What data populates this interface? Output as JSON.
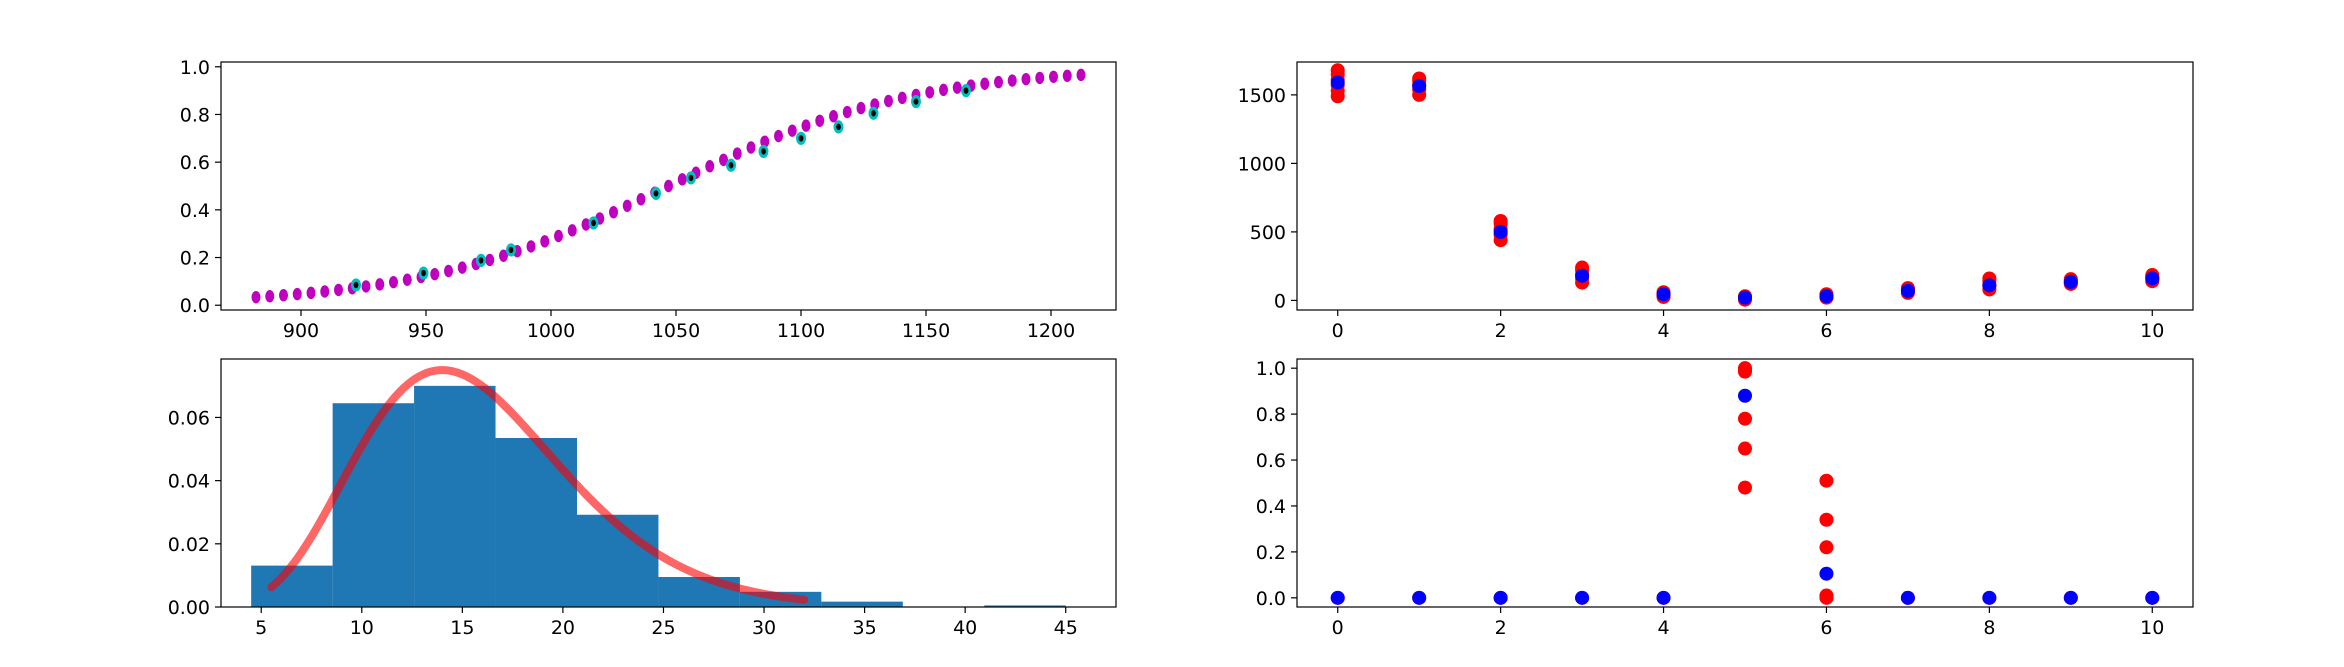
{
  "colors": {
    "background": "#ffffff",
    "axes": "#000000",
    "magenta": "#bf00bf",
    "cyan": "#00bfbf",
    "black": "#000000",
    "hist_blue": "#1f77b4",
    "pdf_red": "#ff0000",
    "red": "#ff0000",
    "blue": "#0000ff"
  },
  "chart_data": [
    {
      "id": "cdf",
      "type": "scatter",
      "title": "",
      "xlabel": "",
      "ylabel": "",
      "xlim": [
        868,
        1226
      ],
      "ylim": [
        -0.02,
        1.02
      ],
      "xticks": [
        900,
        950,
        1000,
        1050,
        1100,
        1150,
        1200
      ],
      "yticks": [
        0.0,
        0.2,
        0.4,
        0.6,
        0.8,
        1.0
      ],
      "ytick_labels": [
        "0.0",
        "0.2",
        "0.4",
        "0.6",
        "0.8",
        "1.0"
      ],
      "grid": false,
      "legend": "none",
      "series": [
        {
          "color": "magenta",
          "x_start": 882,
          "x_end": 1212,
          "count": 61,
          "curve_center": 1047,
          "curve_scale": 0.0203
        },
        {
          "color": "cyan",
          "x": [
            922,
            949,
            972,
            984,
            1017,
            1042,
            1056,
            1072,
            1085,
            1100,
            1115,
            1129,
            1146,
            1166
          ],
          "y": [
            0.085,
            0.135,
            0.188,
            0.232,
            0.345,
            0.469,
            0.534,
            0.587,
            0.645,
            0.7,
            0.748,
            0.805,
            0.854,
            0.9
          ]
        },
        {
          "color": "black",
          "x": [
            922,
            949,
            972,
            984,
            1017,
            1042,
            1056,
            1072,
            1085,
            1100,
            1115,
            1129,
            1146,
            1166
          ],
          "y": [
            0.085,
            0.135,
            0.188,
            0.232,
            0.345,
            0.469,
            0.534,
            0.587,
            0.645,
            0.7,
            0.748,
            0.805,
            0.854,
            0.9
          ]
        }
      ]
    },
    {
      "id": "sweep1",
      "type": "scatter",
      "title": "",
      "xlabel": "",
      "ylabel": "",
      "xlim": [
        -0.5,
        10.5
      ],
      "ylim": [
        -70,
        1740
      ],
      "xticks": [
        0,
        2,
        4,
        6,
        8,
        10
      ],
      "yticks": [
        0,
        500,
        1000,
        1500
      ],
      "grid": false,
      "legend": "none",
      "series": [
        {
          "color": "red",
          "x": [
            0,
            0,
            0,
            0,
            0,
            0,
            1,
            1,
            1,
            1,
            1,
            2,
            2,
            2,
            2,
            2,
            3,
            3,
            3,
            3,
            3,
            4,
            4,
            4,
            4,
            5,
            5,
            5,
            5,
            6,
            6,
            6,
            6,
            7,
            7,
            7,
            7,
            8,
            8,
            8,
            8,
            9,
            9,
            9,
            9,
            10,
            10,
            10,
            10
          ],
          "y": [
            1490,
            1530,
            1570,
            1610,
            1650,
            1680,
            1500,
            1540,
            1570,
            1600,
            1620,
            440,
            480,
            520,
            560,
            580,
            130,
            160,
            190,
            220,
            240,
            25,
            35,
            45,
            60,
            5,
            15,
            25,
            30,
            20,
            30,
            40,
            45,
            55,
            70,
            80,
            90,
            80,
            110,
            140,
            160,
            120,
            130,
            140,
            155,
            140,
            160,
            175,
            185
          ]
        },
        {
          "color": "blue",
          "x": [
            0,
            1,
            2,
            3,
            4,
            5,
            6,
            7,
            8,
            9,
            10
          ],
          "y": [
            1590,
            1565,
            500,
            180,
            45,
            20,
            30,
            70,
            110,
            135,
            160
          ]
        }
      ]
    },
    {
      "id": "histogram",
      "type": "bar",
      "title": "",
      "xlabel": "",
      "ylabel": "",
      "xlim": [
        3.0,
        47.5
      ],
      "ylim": [
        0,
        0.0785
      ],
      "xticks": [
        5,
        10,
        15,
        20,
        25,
        30,
        35,
        40,
        45
      ],
      "yticks": [
        0.0,
        0.02,
        0.04,
        0.06
      ],
      "ytick_labels": [
        "0.00",
        "0.02",
        "0.04",
        "0.06"
      ],
      "grid": false,
      "legend": "none",
      "bin_edges": [
        4.5,
        8.55,
        12.6,
        16.65,
        20.7,
        24.75,
        28.8,
        32.85,
        36.9,
        40.95,
        45.0
      ],
      "values": [
        0.0131,
        0.0645,
        0.07,
        0.0535,
        0.0292,
        0.0095,
        0.0048,
        0.0017,
        0.0,
        0.0005
      ],
      "pdf_curve": {
        "x_start": 5.5,
        "x_end": 32.0,
        "mode": 14.0,
        "peak": 0.075,
        "shape": 7.6
      },
      "series": [
        {
          "name": "",
          "color": "hist_blue"
        },
        {
          "name": "",
          "color": "pdf_red"
        }
      ]
    },
    {
      "id": "sweep2",
      "type": "scatter",
      "title": "",
      "xlabel": "",
      "ylabel": "",
      "xlim": [
        -0.5,
        10.5
      ],
      "ylim": [
        -0.04,
        1.04
      ],
      "xticks": [
        0,
        2,
        4,
        6,
        8,
        10
      ],
      "yticks": [
        0.0,
        0.2,
        0.4,
        0.6,
        0.8,
        1.0
      ],
      "ytick_labels": [
        "0.0",
        "0.2",
        "0.4",
        "0.6",
        "0.8",
        "1.0"
      ],
      "grid": false,
      "legend": "none",
      "series": [
        {
          "color": "red",
          "x": [
            0,
            1,
            2,
            3,
            4,
            5,
            5,
            5,
            5,
            5,
            5,
            6,
            6,
            6,
            6,
            6,
            6,
            7,
            8,
            9,
            10
          ],
          "y": [
            0,
            0,
            0,
            0,
            0,
            0.48,
            0.65,
            0.78,
            0.985,
            0.995,
            1.0,
            0.0,
            0.005,
            0.01,
            0.22,
            0.34,
            0.51,
            0,
            0,
            0,
            0
          ]
        },
        {
          "color": "blue",
          "x": [
            0,
            1,
            2,
            3,
            4,
            5,
            6,
            7,
            8,
            9,
            10
          ],
          "y": [
            0,
            0,
            0,
            0,
            0,
            0.88,
            0.105,
            0,
            0,
            0,
            0
          ]
        }
      ]
    }
  ]
}
